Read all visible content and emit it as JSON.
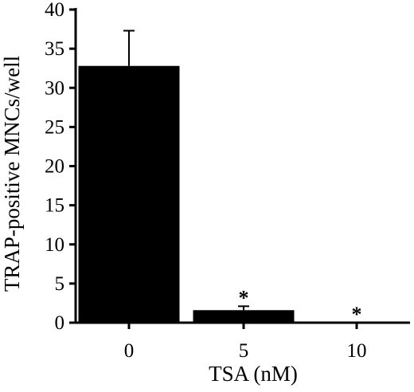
{
  "chart_data": {
    "type": "bar",
    "title": "",
    "xlabel": "TSA (nM)",
    "ylabel": "TRAP-positive MNCs/well",
    "categories": [
      "0",
      "5",
      "10"
    ],
    "values": [
      32.8,
      1.6,
      0
    ],
    "error_upper": [
      37.3,
      2.1,
      null
    ],
    "significance": [
      "",
      "*",
      "*"
    ],
    "ylim": [
      0,
      40
    ],
    "yticks": [
      0,
      5,
      10,
      15,
      20,
      25,
      30,
      35,
      40
    ],
    "bar_color": "#000000",
    "grid": false,
    "legend": "none"
  }
}
